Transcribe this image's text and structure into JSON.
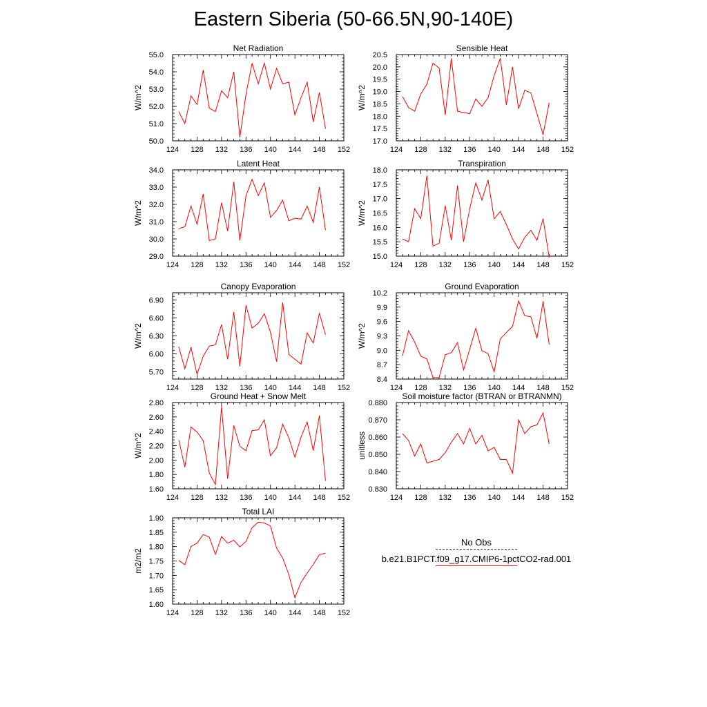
{
  "title": "Eastern Siberia (50-66.5N,90-140E)",
  "line_color": "#ff0000",
  "obs_color": "#3a3aa0",
  "legend": {
    "obs_label": "No Obs",
    "model_label": "b.e21.B1PCT.f09_g17.CMIP6-1pctCO2-rad.001"
  },
  "chart_data": [
    {
      "type": "line",
      "title": "Net Radiation",
      "ylabel": "W/m^2",
      "xlim": [
        124,
        152
      ],
      "ylim": [
        50.0,
        55.0
      ],
      "xticks": [
        "124",
        "128",
        "132",
        "136",
        "140",
        "144",
        "148",
        "152"
      ],
      "yticks": [
        "50.0",
        "51.0",
        "52.0",
        "53.0",
        "54.0",
        "55.0"
      ],
      "x": [
        125,
        126,
        127,
        128,
        129,
        130,
        131,
        132,
        133,
        134,
        135,
        136,
        137,
        138,
        139,
        140,
        141,
        142,
        143,
        144,
        145,
        146,
        147,
        148,
        149
      ],
      "values": [
        51.7,
        51.0,
        52.6,
        52.1,
        54.1,
        51.9,
        51.7,
        52.9,
        52.5,
        54.0,
        50.2,
        52.7,
        54.5,
        53.3,
        54.5,
        53.0,
        54.2,
        53.3,
        53.4,
        51.5,
        52.5,
        53.4,
        51.1,
        52.8,
        50.7
      ]
    },
    {
      "type": "line",
      "title": "Sensible Heat",
      "ylabel": "W/m^2",
      "xlim": [
        124,
        152
      ],
      "ylim": [
        17.0,
        20.5
      ],
      "xticks": [
        "124",
        "128",
        "132",
        "136",
        "140",
        "144",
        "148",
        "152"
      ],
      "yticks": [
        "17.0",
        "17.5",
        "18.0",
        "18.5",
        "19.0",
        "19.5",
        "20.0",
        "20.5"
      ],
      "x": [
        125,
        126,
        127,
        128,
        129,
        130,
        131,
        132,
        133,
        134,
        135,
        136,
        137,
        138,
        139,
        140,
        141,
        142,
        143,
        144,
        145,
        146,
        147,
        148,
        149
      ],
      "values": [
        18.8,
        18.35,
        18.2,
        18.9,
        19.3,
        20.15,
        19.95,
        18.05,
        20.35,
        18.2,
        18.15,
        18.1,
        18.7,
        18.4,
        18.75,
        19.65,
        20.35,
        18.45,
        20.0,
        18.3,
        19.05,
        18.95,
        18.1,
        17.25,
        18.55
      ]
    },
    {
      "type": "line",
      "title": "Latent Heat",
      "ylabel": "W/m^2",
      "xlim": [
        124,
        152
      ],
      "ylim": [
        29.0,
        34.0
      ],
      "xticks": [
        "124",
        "128",
        "132",
        "136",
        "140",
        "144",
        "148",
        "152"
      ],
      "yticks": [
        "29.0",
        "30.0",
        "31.0",
        "32.0",
        "33.0",
        "34.0"
      ],
      "x": [
        125,
        126,
        127,
        128,
        129,
        130,
        131,
        132,
        133,
        134,
        135,
        136,
        137,
        138,
        139,
        140,
        141,
        142,
        143,
        144,
        145,
        146,
        147,
        148,
        149
      ],
      "values": [
        30.6,
        30.7,
        31.9,
        30.85,
        32.6,
        29.9,
        30.0,
        32.1,
        30.45,
        33.3,
        29.9,
        32.5,
        33.45,
        32.5,
        33.25,
        31.25,
        31.65,
        32.25,
        31.05,
        31.2,
        31.15,
        31.9,
        30.95,
        33.0,
        30.5
      ]
    },
    {
      "type": "line",
      "title": "Transpiration",
      "ylabel": "W/m^2",
      "xlim": [
        124,
        152
      ],
      "ylim": [
        15.0,
        18.0
      ],
      "xticks": [
        "124",
        "128",
        "132",
        "136",
        "140",
        "144",
        "148",
        "152"
      ],
      "yticks": [
        "15.0",
        "15.5",
        "16.0",
        "16.5",
        "17.0",
        "17.5",
        "18.0"
      ],
      "x": [
        125,
        126,
        127,
        128,
        129,
        130,
        131,
        132,
        133,
        134,
        135,
        136,
        137,
        138,
        139,
        140,
        141,
        142,
        143,
        144,
        145,
        146,
        147,
        148,
        149
      ],
      "values": [
        15.6,
        15.5,
        16.65,
        16.3,
        17.8,
        15.35,
        15.45,
        16.75,
        15.55,
        17.45,
        15.5,
        16.65,
        17.55,
        16.95,
        17.65,
        16.3,
        16.55,
        16.1,
        15.6,
        15.25,
        15.65,
        15.9,
        15.55,
        16.3,
        14.95
      ]
    },
    {
      "type": "line",
      "title": "Canopy Evaporation",
      "ylabel": "W/m^2",
      "xlim": [
        124,
        152
      ],
      "ylim": [
        5.58,
        7.02
      ],
      "xticks": [
        "124",
        "128",
        "132",
        "136",
        "140",
        "144",
        "148",
        "152"
      ],
      "yticks": [
        "5.70",
        "6.00",
        "6.30",
        "6.60",
        "6.90"
      ],
      "ytick_values": [
        5.7,
        6.0,
        6.3,
        6.6,
        6.9
      ],
      "x": [
        125,
        126,
        127,
        128,
        129,
        130,
        131,
        132,
        133,
        134,
        135,
        136,
        137,
        138,
        139,
        140,
        141,
        142,
        143,
        144,
        145,
        146,
        147,
        148,
        149
      ],
      "values": [
        6.12,
        5.75,
        6.11,
        5.66,
        5.96,
        6.13,
        6.15,
        6.49,
        5.91,
        6.7,
        5.79,
        6.81,
        6.43,
        6.51,
        6.67,
        6.36,
        5.87,
        6.86,
        5.99,
        5.91,
        5.83,
        6.35,
        6.18,
        6.68,
        6.32
      ]
    },
    {
      "type": "line",
      "title": "Ground Evaporation",
      "ylabel": "W/m^2",
      "xlim": [
        124,
        152
      ],
      "ylim": [
        8.4,
        10.2
      ],
      "xticks": [
        "124",
        "128",
        "132",
        "136",
        "140",
        "144",
        "148",
        "152"
      ],
      "yticks": [
        "8.4",
        "8.7",
        "9.0",
        "9.3",
        "9.6",
        "9.9",
        "10.2"
      ],
      "x": [
        125,
        126,
        127,
        128,
        129,
        130,
        131,
        132,
        133,
        134,
        135,
        136,
        137,
        138,
        139,
        140,
        141,
        142,
        143,
        144,
        145,
        146,
        147,
        148,
        149
      ],
      "values": [
        8.88,
        9.41,
        9.17,
        8.88,
        8.82,
        8.43,
        8.43,
        8.91,
        8.95,
        9.16,
        8.59,
        9.02,
        9.46,
        8.99,
        8.93,
        8.55,
        9.24,
        9.37,
        9.5,
        10.03,
        9.72,
        9.7,
        9.25,
        10.02,
        9.12
      ]
    },
    {
      "type": "line",
      "title": "Ground Heat + Snow Melt",
      "ylabel": "W/m^2",
      "xlim": [
        124,
        152
      ],
      "ylim": [
        1.6,
        2.8
      ],
      "xticks": [
        "124",
        "128",
        "132",
        "136",
        "140",
        "144",
        "148",
        "152"
      ],
      "yticks": [
        "1.60",
        "1.80",
        "2.00",
        "2.20",
        "2.40",
        "2.60",
        "2.80"
      ],
      "x": [
        125,
        126,
        127,
        128,
        129,
        130,
        131,
        132,
        133,
        134,
        135,
        136,
        137,
        138,
        139,
        140,
        141,
        142,
        143,
        144,
        145,
        146,
        147,
        148,
        149
      ],
      "values": [
        2.28,
        1.9,
        2.46,
        2.39,
        2.27,
        1.82,
        1.66,
        2.74,
        1.74,
        2.48,
        2.19,
        2.13,
        2.41,
        2.42,
        2.56,
        2.06,
        2.17,
        2.5,
        2.31,
        2.04,
        2.32,
        2.53,
        2.13,
        2.62,
        1.71
      ]
    },
    {
      "type": "line",
      "title": "Soil moisture factor (BTRAN or BTRANMN)",
      "ylabel": "unitless",
      "xlim": [
        124,
        152
      ],
      "ylim": [
        0.83,
        0.88
      ],
      "xticks": [
        "124",
        "128",
        "132",
        "136",
        "140",
        "144",
        "148",
        "152"
      ],
      "yticks": [
        "0.830",
        "0.840",
        "0.850",
        "0.860",
        "0.870",
        "0.880"
      ],
      "x": [
        125,
        126,
        127,
        128,
        129,
        130,
        131,
        132,
        133,
        134,
        135,
        136,
        137,
        138,
        139,
        140,
        141,
        142,
        143,
        144,
        145,
        146,
        147,
        148,
        149
      ],
      "values": [
        0.862,
        0.858,
        0.849,
        0.856,
        0.845,
        0.846,
        0.847,
        0.851,
        0.857,
        0.862,
        0.856,
        0.865,
        0.856,
        0.861,
        0.852,
        0.854,
        0.847,
        0.847,
        0.839,
        0.87,
        0.862,
        0.866,
        0.867,
        0.874,
        0.856
      ]
    },
    {
      "type": "line",
      "title": "Total LAI",
      "ylabel": "m2/m2",
      "xlim": [
        124,
        152
      ],
      "ylim": [
        1.6,
        1.9
      ],
      "xticks": [
        "124",
        "128",
        "132",
        "136",
        "140",
        "144",
        "148",
        "152"
      ],
      "yticks": [
        "1.60",
        "1.65",
        "1.70",
        "1.75",
        "1.80",
        "1.85",
        "1.90"
      ],
      "x": [
        125,
        126,
        127,
        128,
        129,
        130,
        131,
        132,
        133,
        134,
        135,
        136,
        137,
        138,
        139,
        140,
        141,
        142,
        143,
        144,
        145,
        146,
        147,
        148,
        149
      ],
      "values": [
        1.752,
        1.737,
        1.801,
        1.812,
        1.842,
        1.833,
        1.773,
        1.835,
        1.812,
        1.822,
        1.799,
        1.818,
        1.866,
        1.885,
        1.882,
        1.872,
        1.795,
        1.76,
        1.703,
        1.622,
        1.676,
        1.708,
        1.738,
        1.772,
        1.777
      ]
    }
  ]
}
